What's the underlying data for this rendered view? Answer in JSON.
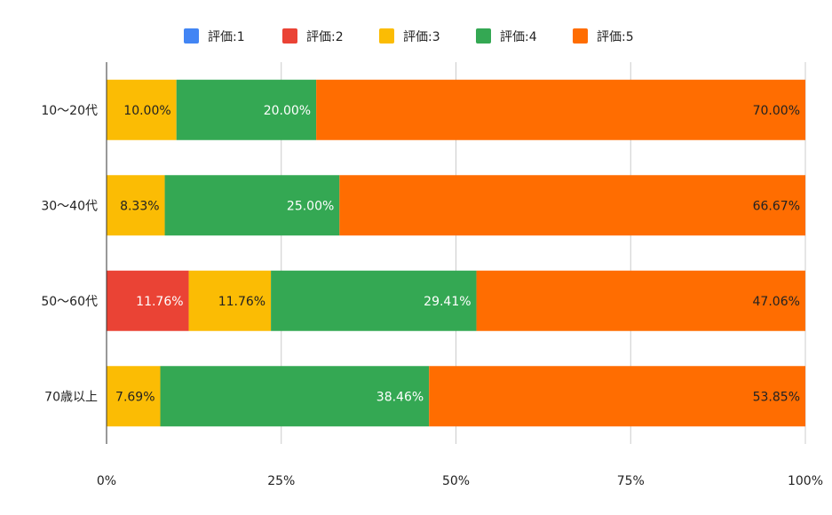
{
  "chart_data": {
    "type": "bar",
    "orientation": "horizontal",
    "stacked": "percent",
    "title": "",
    "xlabel": "",
    "ylabel": "",
    "xlim": [
      0,
      100
    ],
    "x_ticks": [
      "0%",
      "25%",
      "50%",
      "75%",
      "100%"
    ],
    "grid": true,
    "legend_position": "top",
    "categories": [
      "10〜20代",
      "30〜40代",
      "50〜60代",
      "70歳以上"
    ],
    "series": [
      {
        "name": "評価:1",
        "color": "#4285f4",
        "values": [
          0,
          0,
          0,
          0
        ],
        "labels": [
          "",
          "",
          "",
          ""
        ]
      },
      {
        "name": "評価:2",
        "color": "#ea4335",
        "values": [
          0,
          0,
          11.76,
          0
        ],
        "labels": [
          "",
          "",
          "11.76%",
          ""
        ]
      },
      {
        "name": "評価:3",
        "color": "#fbbc04",
        "values": [
          10.0,
          8.33,
          11.76,
          7.69
        ],
        "labels": [
          "10.00%",
          "8.33%",
          "11.76%",
          "7.69%"
        ]
      },
      {
        "name": "評価:4",
        "color": "#34a853",
        "values": [
          20.0,
          25.0,
          29.41,
          38.46
        ],
        "labels": [
          "20.00%",
          "25.00%",
          "29.41%",
          "38.46%"
        ]
      },
      {
        "name": "評価:5",
        "color": "#ff6d01",
        "values": [
          70.0,
          66.67,
          47.06,
          53.85
        ],
        "labels": [
          "70.00%",
          "66.67%",
          "47.06%",
          "53.85%"
        ]
      }
    ]
  }
}
